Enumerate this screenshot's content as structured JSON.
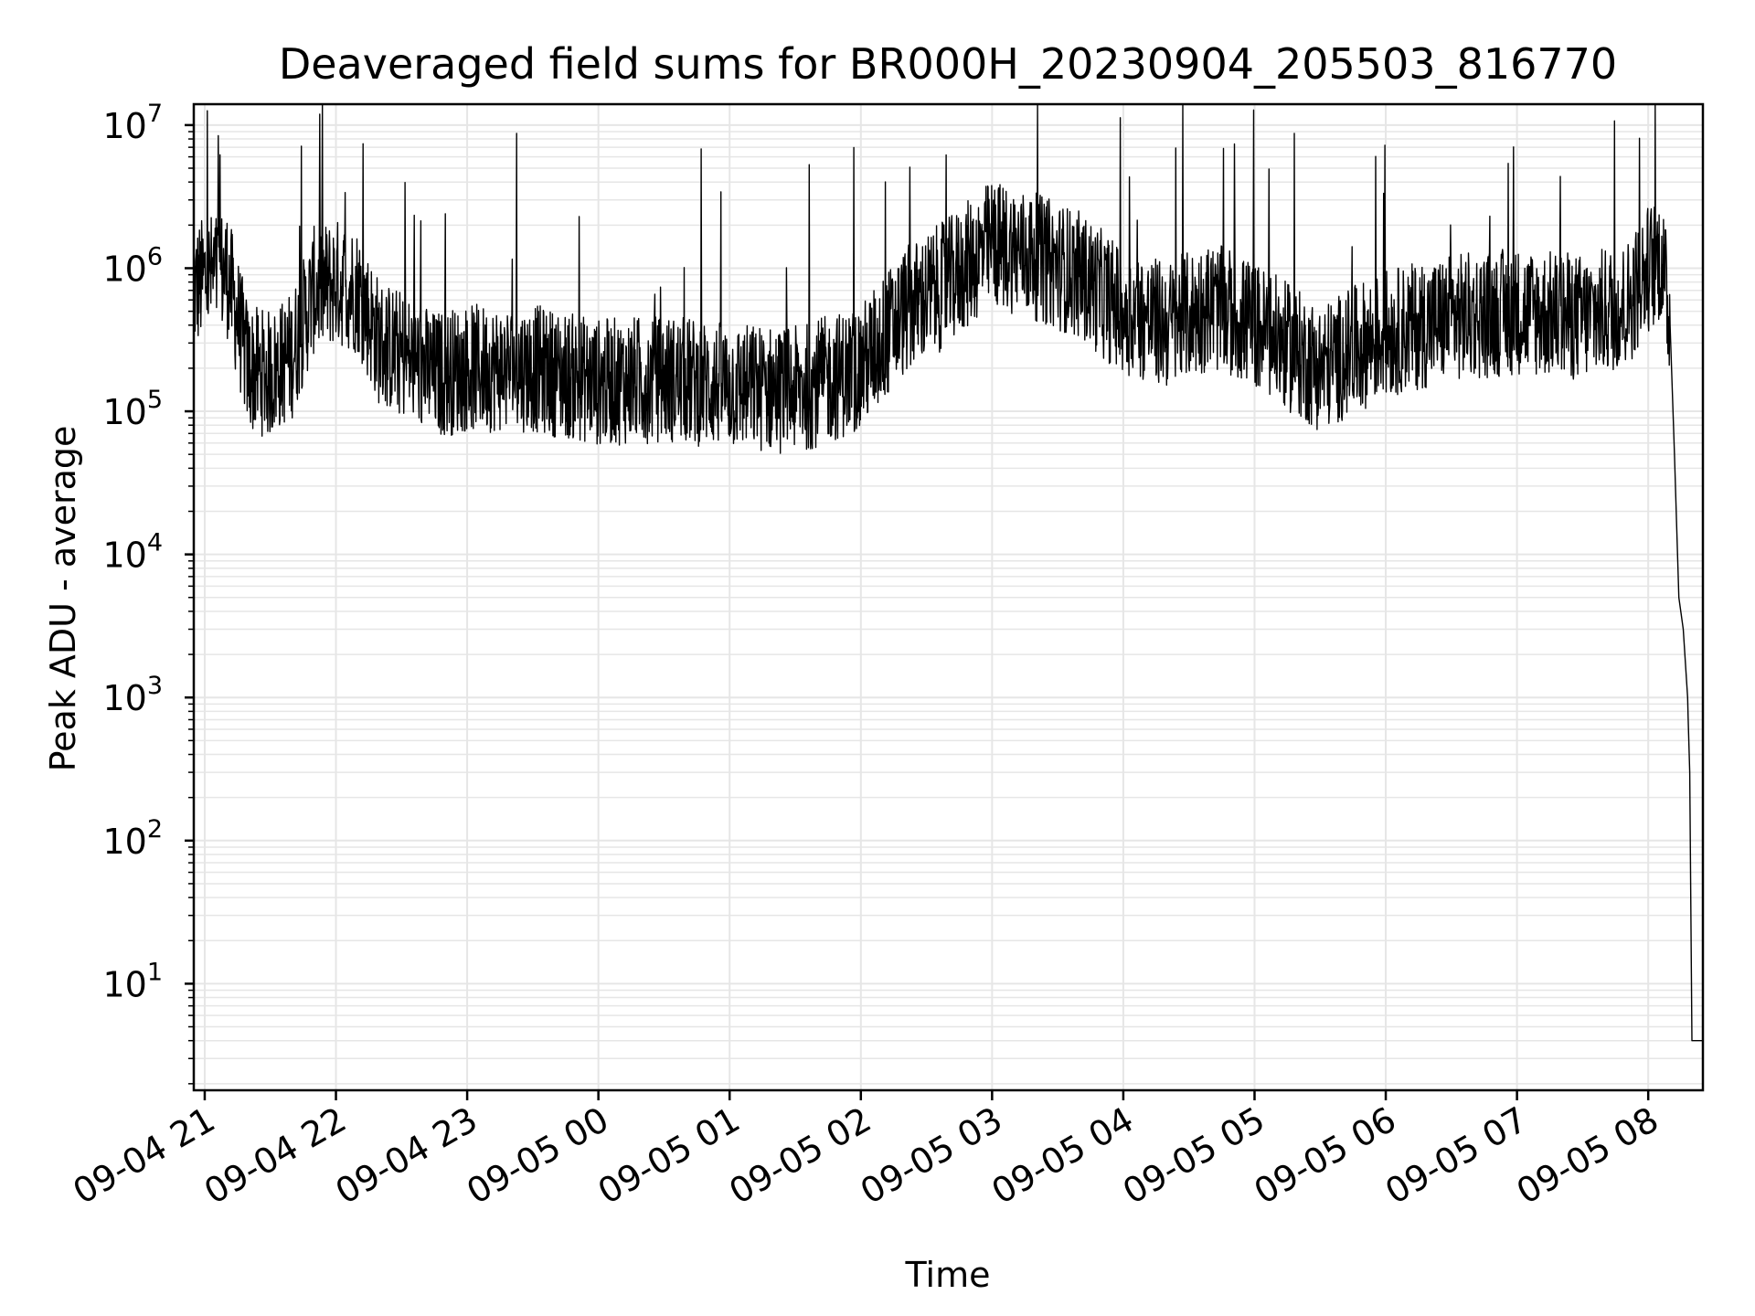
{
  "chart_data": {
    "type": "line",
    "title": "Deaveraged field sums for BR000H_20230904_205503_816770",
    "xlabel": "Time",
    "ylabel": "Peak ADU - average",
    "yscale": "log",
    "ylim": [
      1.8,
      14000000
    ],
    "xlim": [
      "2023-09-04 20:55",
      "2023-09-05 08:25"
    ],
    "grid": true,
    "line_color": "#000000",
    "grid_color": "#e6e6e6",
    "x_ticks": [
      {
        "t": "2023-09-04 21:00",
        "label": "09-04 21"
      },
      {
        "t": "2023-09-04 22:00",
        "label": "09-04 22"
      },
      {
        "t": "2023-09-04 23:00",
        "label": "09-04 23"
      },
      {
        "t": "2023-09-05 00:00",
        "label": "09-05 00"
      },
      {
        "t": "2023-09-05 01:00",
        "label": "09-05 01"
      },
      {
        "t": "2023-09-05 02:00",
        "label": "09-05 02"
      },
      {
        "t": "2023-09-05 03:00",
        "label": "09-05 03"
      },
      {
        "t": "2023-09-05 04:00",
        "label": "09-05 04"
      },
      {
        "t": "2023-09-05 05:00",
        "label": "09-05 05"
      },
      {
        "t": "2023-09-05 06:00",
        "label": "09-05 06"
      },
      {
        "t": "2023-09-05 07:00",
        "label": "09-05 07"
      },
      {
        "t": "2023-09-05 08:00",
        "label": "09-05 08"
      }
    ],
    "y_ticks": [
      {
        "value": 10,
        "base": "10",
        "exp": "1"
      },
      {
        "value": 100,
        "base": "10",
        "exp": "2"
      },
      {
        "value": 1000,
        "base": "10",
        "exp": "3"
      },
      {
        "value": 10000,
        "base": "10",
        "exp": "4"
      },
      {
        "value": 100000,
        "base": "10",
        "exp": "5"
      },
      {
        "value": 1000000,
        "base": "10",
        "exp": "6"
      },
      {
        "value": 10000000,
        "base": "10",
        "exp": "7"
      }
    ],
    "series": [
      {
        "points": [
          [
            "2023-09-04 20:55",
            700000
          ],
          [
            "2023-09-04 21:00",
            850000
          ],
          [
            "2023-09-04 21:05",
            900000
          ],
          [
            "2023-09-04 21:10",
            950000
          ],
          [
            "2023-09-04 21:15",
            450000
          ],
          [
            "2023-09-04 21:20",
            200000
          ],
          [
            "2023-09-04 21:30",
            180000
          ],
          [
            "2023-09-04 21:40",
            250000
          ],
          [
            "2023-09-04 21:50",
            700000
          ],
          [
            "2023-09-04 22:00",
            800000
          ],
          [
            "2023-09-04 22:10",
            700000
          ],
          [
            "2023-09-04 22:20",
            300000
          ],
          [
            "2023-09-04 22:30",
            250000
          ],
          [
            "2023-09-04 22:45",
            180000
          ],
          [
            "2023-09-04 23:00",
            200000
          ],
          [
            "2023-09-04 23:30",
            200000
          ],
          [
            "2023-09-05 00:00",
            160000
          ],
          [
            "2023-09-05 00:30",
            170000
          ],
          [
            "2023-09-05 01:00",
            150000
          ],
          [
            "2023-09-05 01:30",
            140000
          ],
          [
            "2023-09-05 02:00",
            200000
          ],
          [
            "2023-09-05 02:20",
            500000
          ],
          [
            "2023-09-05 02:40",
            800000
          ],
          [
            "2023-09-05 03:00",
            1500000
          ],
          [
            "2023-09-05 03:20",
            1200000
          ],
          [
            "2023-09-05 03:40",
            900000
          ],
          [
            "2023-09-05 04:00",
            500000
          ],
          [
            "2023-09-05 04:20",
            400000
          ],
          [
            "2023-09-05 04:40",
            550000
          ],
          [
            "2023-09-05 05:00",
            400000
          ],
          [
            "2023-09-05 05:30",
            200000
          ],
          [
            "2023-09-05 06:00",
            350000
          ],
          [
            "2023-09-05 06:30",
            450000
          ],
          [
            "2023-09-05 07:00",
            500000
          ],
          [
            "2023-09-05 07:30",
            450000
          ],
          [
            "2023-09-05 07:50",
            550000
          ],
          [
            "2023-09-05 08:00",
            1000000
          ],
          [
            "2023-09-05 08:06",
            1200000
          ],
          [
            "2023-09-05 08:10",
            400000
          ],
          [
            "2023-09-05 08:12",
            50000
          ],
          [
            "2023-09-05 08:14",
            5000
          ],
          [
            "2023-09-05 08:16",
            3000
          ],
          [
            "2023-09-05 08:18",
            1000
          ],
          [
            "2023-09-05 08:19",
            300
          ],
          [
            "2023-09-05 08:20",
            4
          ],
          [
            "2023-09-05 08:25",
            4
          ]
        ]
      }
    ]
  }
}
